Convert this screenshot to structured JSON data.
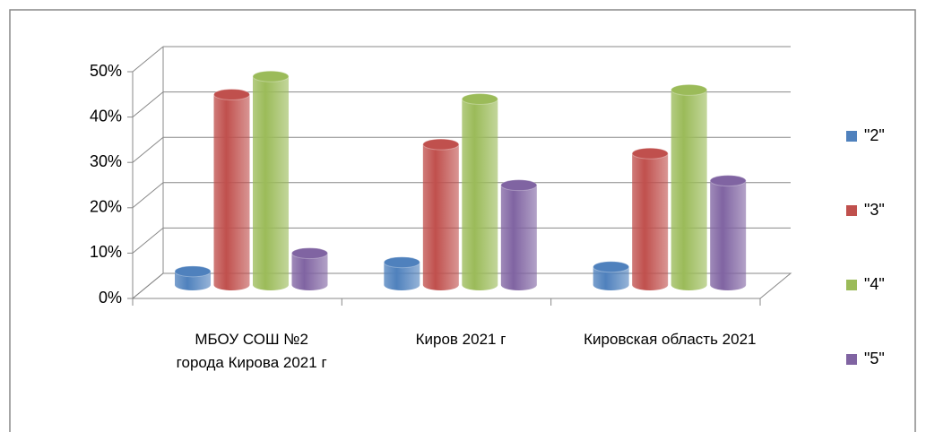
{
  "chart_data": {
    "type": "bar3d",
    "categories": [
      "МБОУ СОШ №2 города Кирова 2021 г",
      "Киров 2021 г",
      "Кировская область 2021"
    ],
    "series": [
      {
        "name": "\"2\"",
        "color": "#4f81bd",
        "values": [
          3,
          5,
          4
        ]
      },
      {
        "name": "\"3\"",
        "color": "#c0504d",
        "values": [
          42,
          31,
          29
        ]
      },
      {
        "name": "\"4\"",
        "color": "#9bbb59",
        "values": [
          46,
          41,
          43
        ]
      },
      {
        "name": "\"5\"",
        "color": "#8064a2",
        "values": [
          7,
          22,
          23
        ]
      }
    ],
    "ylim": [
      0,
      50
    ],
    "yticks": [
      {
        "value": 0,
        "label": "0%"
      },
      {
        "value": 10,
        "label": "10%"
      },
      {
        "value": 20,
        "label": "20%"
      },
      {
        "value": 30,
        "label": "30%"
      },
      {
        "value": 40,
        "label": "40%"
      },
      {
        "value": 50,
        "label": "50%"
      }
    ],
    "grid": true,
    "legend": "right"
  }
}
